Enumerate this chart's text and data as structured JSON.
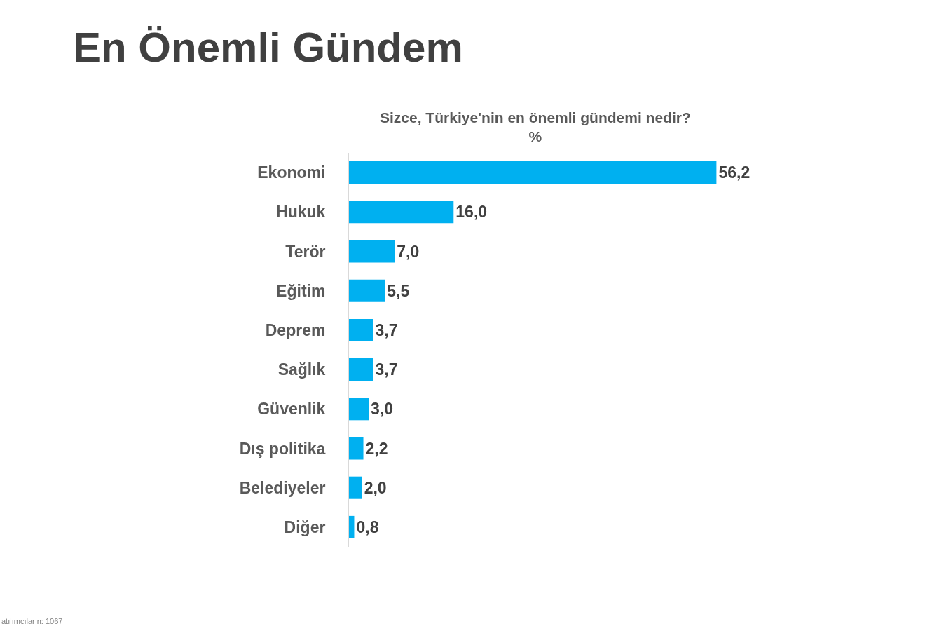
{
  "chart_data": {
    "type": "bar",
    "orientation": "horizontal",
    "title": "En Önemli Gündem",
    "subtitle": "Sizce, Türkiye'nin en önemli gündemi nedir?\n%",
    "categories": [
      "Ekonomi",
      "Hukuk",
      "Terör",
      "Eğitim",
      "Deprem",
      "Sağlık",
      "Güvenlik",
      "Dış politika",
      "Belediyeler",
      "Diğer"
    ],
    "values": [
      56.2,
      16.0,
      7.0,
      5.5,
      3.7,
      3.7,
      3.0,
      2.2,
      2.0,
      0.8
    ],
    "value_labels": [
      "56,2",
      "16,0",
      "7,0",
      "5,5",
      "3,7",
      "3,7",
      "3,0",
      "2,2",
      "2,0",
      "0,8"
    ],
    "color": "#00b0f0",
    "annotations": [
      "atılımcılar n: 1067"
    ]
  }
}
